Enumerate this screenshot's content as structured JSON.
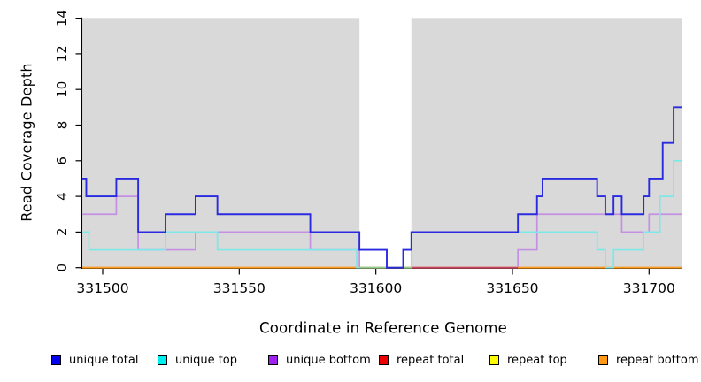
{
  "chart_data": {
    "type": "line",
    "subtype": "step-coverage-plot",
    "title": "",
    "xlabel": "Coordinate in Reference Genome",
    "ylabel": "Read Coverage Depth",
    "xlim": [
      331492,
      331712
    ],
    "ylim": [
      0,
      14
    ],
    "x_ticks": [
      331500,
      331550,
      331600,
      331650,
      331700
    ],
    "y_ticks": [
      0,
      2,
      4,
      6,
      8,
      10,
      12,
      14
    ],
    "grid": "off",
    "plot_background_color": "#d9d9d9",
    "uncovered_white_gap_x": [
      331594,
      331613
    ],
    "series": [
      {
        "name": "unique total",
        "color": "#2a2ae0",
        "steps": [
          [
            331492,
            5
          ],
          [
            331494,
            4
          ],
          [
            331505,
            5
          ],
          [
            331513,
            2
          ],
          [
            331523,
            3
          ],
          [
            331534,
            4
          ],
          [
            331542,
            3
          ],
          [
            331576,
            2
          ],
          [
            331594,
            1
          ],
          [
            331604,
            0
          ],
          [
            331610,
            1
          ],
          [
            331613,
            2
          ],
          [
            331652,
            3
          ],
          [
            331659,
            4
          ],
          [
            331661,
            5
          ],
          [
            331681,
            4
          ],
          [
            331684,
            3
          ],
          [
            331687,
            4
          ],
          [
            331690,
            3
          ],
          [
            331698,
            4
          ],
          [
            331700,
            5
          ],
          [
            331705,
            7
          ],
          [
            331709,
            9
          ]
        ]
      },
      {
        "name": "unique top",
        "color": "#7de8e8",
        "steps": [
          [
            331492,
            2
          ],
          [
            331495,
            1
          ],
          [
            331523,
            2
          ],
          [
            331542,
            1
          ],
          [
            331593,
            0
          ],
          [
            331613,
            2
          ],
          [
            331681,
            1
          ],
          [
            331684,
            0
          ],
          [
            331687,
            1
          ],
          [
            331698,
            2
          ],
          [
            331704,
            4
          ],
          [
            331709,
            6
          ]
        ]
      },
      {
        "name": "unique bottom",
        "color": "#c490e4",
        "steps": [
          [
            331492,
            3
          ],
          [
            331505,
            4
          ],
          [
            331513,
            1
          ],
          [
            331534,
            2
          ],
          [
            331576,
            1
          ],
          [
            331594,
            0
          ],
          [
            331652,
            1
          ],
          [
            331659,
            3
          ],
          [
            331690,
            2
          ],
          [
            331700,
            3
          ]
        ]
      },
      {
        "name": "repeat total",
        "color": "#dd2222",
        "steps": [
          [
            331492,
            0
          ]
        ]
      },
      {
        "name": "repeat top",
        "color": "#ffff00",
        "steps": [
          [
            331492,
            0
          ]
        ]
      },
      {
        "name": "repeat bottom",
        "color": "#ff9d20",
        "steps": [
          [
            331492,
            0
          ]
        ]
      }
    ],
    "overlay_blends": [
      {
        "x": [
          331594,
          331613
        ],
        "value": 0,
        "color": "#90cc90"
      },
      {
        "x": [
          331613,
          331652
        ],
        "value": 0,
        "color": "#c4476b"
      }
    ]
  },
  "legend": {
    "items": [
      {
        "label": "unique total",
        "color": "#0000ee"
      },
      {
        "label": "unique top",
        "color": "#00eeee"
      },
      {
        "label": "unique bottom",
        "color": "#a020f0"
      },
      {
        "label": "repeat total",
        "color": "#ee0000"
      },
      {
        "label": "repeat top",
        "color": "#ffff00"
      },
      {
        "label": "repeat bottom",
        "color": "#ff9912"
      }
    ]
  }
}
